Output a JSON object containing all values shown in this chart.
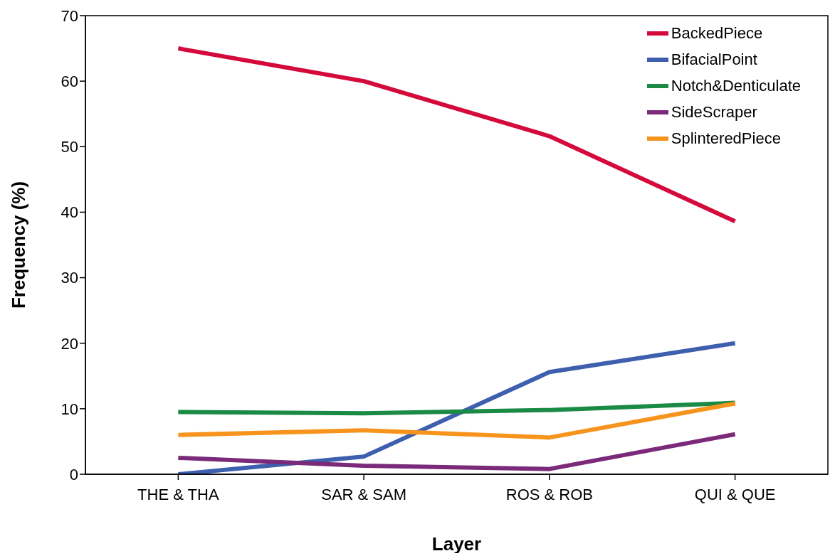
{
  "chart_data": {
    "type": "line",
    "xlabel": "Layer",
    "ylabel": "Frequency (%)",
    "categories": [
      "THE & THA",
      "SAR & SAM",
      "ROS & ROB",
      "QUI & QUE"
    ],
    "series": [
      {
        "name": "BackedPiece",
        "color": "#d40a3c",
        "values": [
          65,
          60,
          51.6,
          38.6
        ]
      },
      {
        "name": "BifacialPoint",
        "color": "#3d5fae",
        "values": [
          0,
          2.7,
          15.6,
          20
        ]
      },
      {
        "name": "Notch&Denticulate",
        "color": "#1a8a45",
        "values": [
          9.5,
          9.3,
          9.8,
          10.9
        ]
      },
      {
        "name": "SideScraper",
        "color": "#7b2a7a",
        "values": [
          2.5,
          1.3,
          0.8,
          6.1
        ]
      },
      {
        "name": "SplinteredPiece",
        "color": "#f7941d",
        "values": [
          6,
          6.7,
          5.6,
          10.8
        ]
      }
    ],
    "ylim": [
      0,
      70
    ],
    "yticks": [
      0,
      10,
      20,
      30,
      40,
      50,
      60,
      70
    ],
    "grid": false,
    "legend": "top right",
    "marker": "none",
    "line_style": "solid"
  }
}
